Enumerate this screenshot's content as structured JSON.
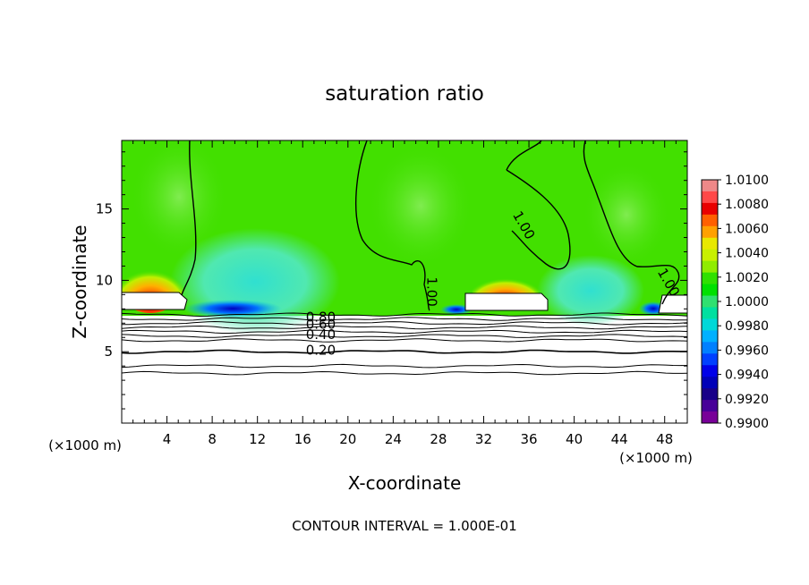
{
  "chart_data": {
    "type": "heatmap",
    "title": "saturation ratio",
    "xlabel": "X-coordinate",
    "ylabel": "Z-coordinate",
    "x_unit": "(×1000 m)",
    "y_unit": "(×1000 m)",
    "xlim": [
      0,
      50
    ],
    "ylim": [
      0,
      19.8
    ],
    "x_ticks": [
      4,
      8,
      12,
      16,
      20,
      24,
      28,
      32,
      36,
      40,
      44,
      48
    ],
    "y_ticks": [
      5,
      10,
      15
    ],
    "footer": "CONTOUR INTERVAL = 1.000E-01",
    "colorbar": {
      "labels": [
        "1.0100",
        "1.0080",
        "1.0060",
        "1.0040",
        "1.0020",
        "1.0000",
        "0.9980",
        "0.9960",
        "0.9940",
        "0.9920",
        "0.9900"
      ],
      "colors": [
        "#ee8888",
        "#ff4848",
        "#e80000",
        "#ff6000",
        "#ffa000",
        "#e8e800",
        "#c8f000",
        "#90ec00",
        "#30e000",
        "#00e000",
        "#30e070",
        "#00e0a0",
        "#00d8d8",
        "#00b0ff",
        "#0080ff",
        "#0040ff",
        "#0000e8",
        "#0000b8",
        "#180088",
        "#480098",
        "#780098"
      ]
    },
    "contour_labels": [
      {
        "text": "0.80",
        "x": 17.6,
        "z": 7.1
      },
      {
        "text": "0.60",
        "x": 17.6,
        "z": 6.6
      },
      {
        "text": "0.40",
        "x": 17.6,
        "z": 5.9
      },
      {
        "text": "0.20",
        "x": 17.6,
        "z": 4.8
      },
      {
        "text": "1.00",
        "x": 27.0,
        "z": 9.2
      },
      {
        "text": "1.00",
        "x": 35.2,
        "z": 13.7
      },
      {
        "text": "1.00",
        "x": 48.0,
        "z": 9.7
      }
    ],
    "isolines_z": [
      7.6,
      7.3,
      7.0,
      6.7,
      6.4,
      6.1,
      5.8,
      5.0,
      4.0,
      3.5
    ]
  }
}
